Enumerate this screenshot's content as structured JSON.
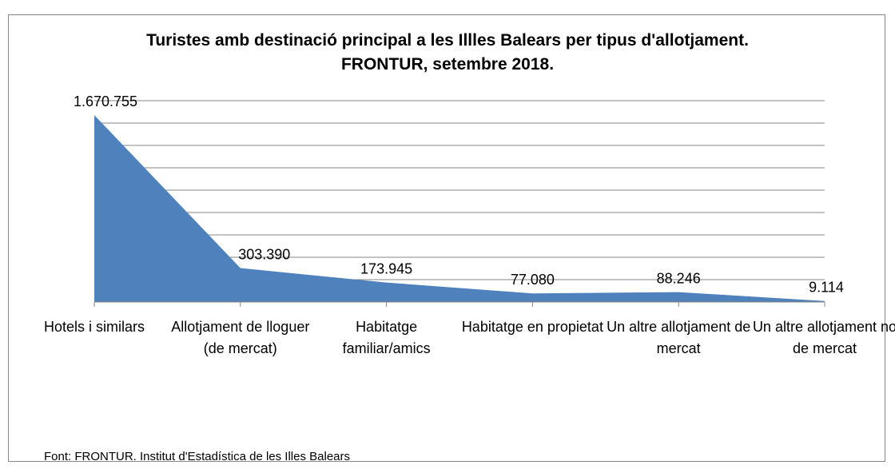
{
  "chart_data": {
    "type": "area",
    "title": "Turistes amb destinació principal a les Illles Balears per tipus d'allotjament. FRONTUR, setembre 2018.",
    "categories": [
      "Hotels i similars",
      "Allotjament de lloguer (de mercat)",
      "Habitatge familiar/amics",
      "Habitatge en propietat",
      "Un altre allotjament de mercat",
      "Un altre allotjament no de mercat"
    ],
    "values": [
      1670755,
      303390,
      173945,
      77080,
      88246,
      9114
    ],
    "value_labels": [
      "1.670.755",
      "303.390",
      "173.945",
      "77.080",
      "88.246",
      "9.114"
    ],
    "color": "#4f81bd",
    "ylim": [
      0,
      1800000
    ],
    "yticks": [
      0,
      200000,
      400000,
      600000,
      800000,
      1000000,
      1200000,
      1400000,
      1600000,
      1800000
    ],
    "grid": true,
    "source": "Font: FRONTUR.  Institut d'Estadística de les Illes Balears"
  }
}
